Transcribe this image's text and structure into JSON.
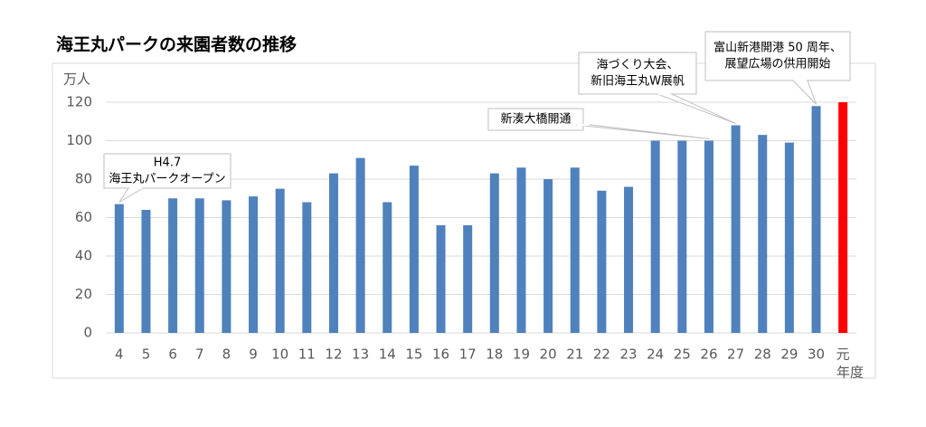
{
  "chart_data": {
    "type": "bar",
    "title": "海王丸パークの来園者数の推移",
    "y_axis_label": "万人",
    "x_axis_label": "年度",
    "categories": [
      "4",
      "5",
      "6",
      "7",
      "8",
      "9",
      "10",
      "11",
      "12",
      "13",
      "14",
      "15",
      "16",
      "17",
      "18",
      "19",
      "20",
      "21",
      "22",
      "23",
      "24",
      "25",
      "26",
      "27",
      "28",
      "29",
      "30",
      "元"
    ],
    "values": [
      67,
      64,
      70,
      70,
      69,
      71,
      75,
      68,
      83,
      91,
      68,
      87,
      56,
      56,
      83,
      86,
      80,
      86,
      74,
      76,
      100,
      100,
      100,
      108,
      103,
      99,
      118,
      120
    ],
    "colors": [
      "#4f81bd",
      "#4f81bd",
      "#4f81bd",
      "#4f81bd",
      "#4f81bd",
      "#4f81bd",
      "#4f81bd",
      "#4f81bd",
      "#4f81bd",
      "#4f81bd",
      "#4f81bd",
      "#4f81bd",
      "#4f81bd",
      "#4f81bd",
      "#4f81bd",
      "#4f81bd",
      "#4f81bd",
      "#4f81bd",
      "#4f81bd",
      "#4f81bd",
      "#4f81bd",
      "#4f81bd",
      "#4f81bd",
      "#4f81bd",
      "#4f81bd",
      "#4f81bd",
      "#4f81bd",
      "#ff0000"
    ],
    "ylim": [
      0,
      120
    ],
    "yticks": [
      0,
      20,
      40,
      60,
      80,
      100,
      120
    ],
    "grid": true,
    "annotations": [
      {
        "lines": [
          "H4.7",
          "海王丸パークオープン"
        ]
      },
      {
        "lines": [
          "新湊大橋開通"
        ]
      },
      {
        "lines": [
          "海づくり大会、",
          "新旧海王丸W展帆"
        ]
      },
      {
        "lines": [
          "富山新港開港 50 周年、",
          "展望広場の供用開始"
        ]
      }
    ]
  }
}
